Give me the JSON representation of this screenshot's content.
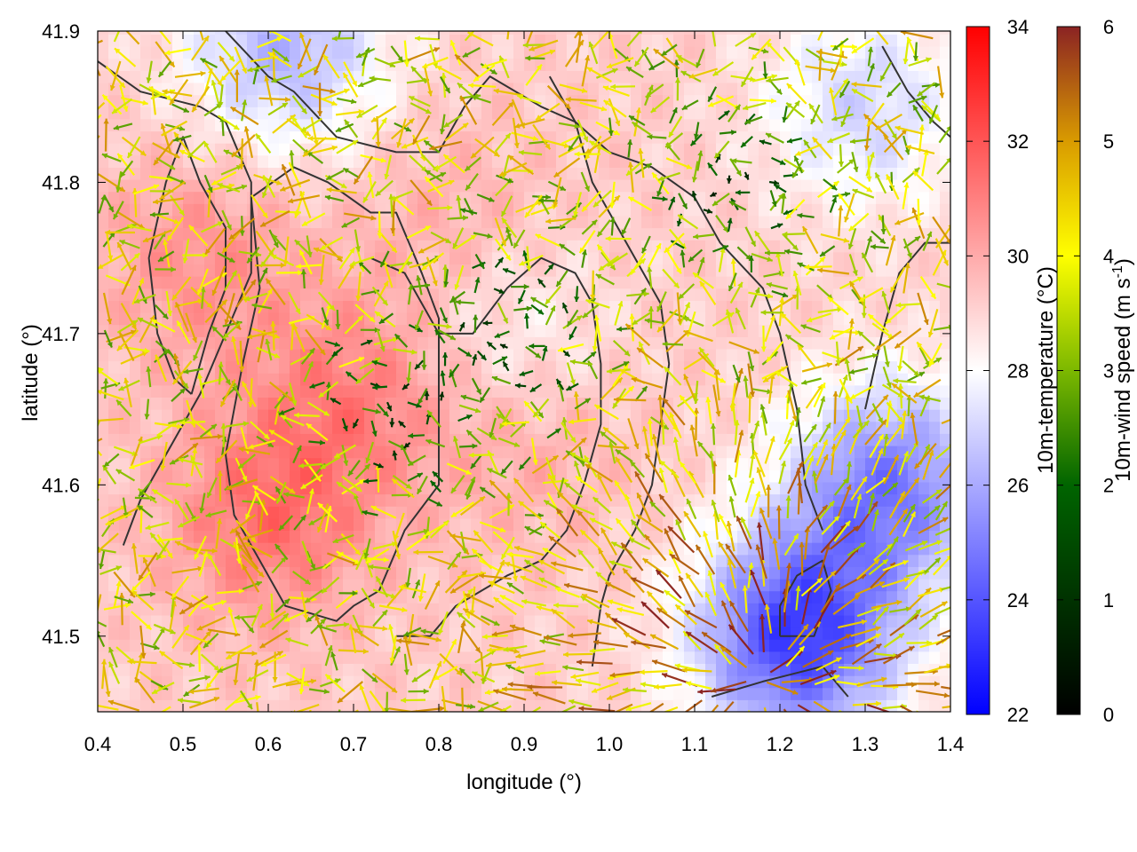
{
  "chart_data": {
    "type": "heatmap",
    "xlabel": "longitude (°)",
    "ylabel": "latitude (°)",
    "xlim": [
      0.4,
      1.4
    ],
    "ylim": [
      41.45,
      41.9
    ],
    "xticks": [
      0.4,
      0.5,
      0.6,
      0.7,
      0.8,
      0.9,
      1.0,
      1.1,
      1.2,
      1.3,
      1.4
    ],
    "xtick_labels": [
      "0.4",
      "0.5",
      "0.6",
      "0.7",
      "0.8",
      "0.9",
      "1.0",
      "1.1",
      "1.2",
      "1.3",
      "1.4"
    ],
    "yticks": [
      41.5,
      41.6,
      41.7,
      41.8,
      41.9
    ],
    "ytick_labels": [
      "41.5",
      "41.6",
      "41.7",
      "41.8",
      "41.9"
    ],
    "grid": false,
    "layers": [
      {
        "kind": "color-field",
        "name": "10m-temperature (°C)",
        "range": [
          22,
          34
        ],
        "ticks": [
          22,
          24,
          26,
          28,
          30,
          32,
          34
        ],
        "tick_labels": [
          "22",
          "24",
          "26",
          "28",
          "30",
          "32",
          "34"
        ],
        "colormap": [
          "#0000ff",
          "#ffffff",
          "#ff0000"
        ],
        "colormap_positions": [
          0,
          0.5,
          1
        ],
        "warm_centers": [
          {
            "lon": 0.6,
            "lat": 41.58,
            "value": 31.3
          },
          {
            "lon": 0.52,
            "lat": 41.75,
            "value": 30.6
          },
          {
            "lon": 0.7,
            "lat": 41.66,
            "value": 30.9
          },
          {
            "lon": 0.9,
            "lat": 41.63,
            "value": 30.1
          },
          {
            "lon": 0.82,
            "lat": 41.77,
            "value": 30.0
          }
        ],
        "cool_centers": [
          {
            "lon": 1.22,
            "lat": 41.5,
            "value": 23.5
          },
          {
            "lon": 1.33,
            "lat": 41.6,
            "value": 25.0
          },
          {
            "lon": 0.62,
            "lat": 41.89,
            "value": 26.2
          },
          {
            "lon": 1.3,
            "lat": 41.85,
            "value": 27.0
          },
          {
            "lon": 0.88,
            "lat": 41.7,
            "value": 28.0
          }
        ],
        "background_value": 29.2
      },
      {
        "kind": "vector-field",
        "name": "10m-wind speed (m s-1)",
        "range": [
          0,
          6
        ],
        "ticks": [
          0,
          1,
          2,
          3,
          4,
          5,
          6
        ],
        "tick_labels": [
          "0",
          "1",
          "2",
          "3",
          "4",
          "5",
          "6"
        ],
        "colormap": [
          "#000000",
          "#006400",
          "#7cb800",
          "#ffff00",
          "#d99b00",
          "#8b2323"
        ],
        "colormap_positions": [
          0,
          0.333,
          0.5,
          0.667,
          0.833,
          1
        ],
        "calm_centers": [
          {
            "lon": 0.9,
            "lat": 41.7
          },
          {
            "lon": 1.15,
            "lat": 41.8
          },
          {
            "lon": 0.75,
            "lat": 41.65
          }
        ],
        "divergence_center": {
          "lon": 1.18,
          "lat": 41.47
        },
        "grid_step_lon": 0.02,
        "grid_step_lat": 0.0125
      },
      {
        "kind": "contour",
        "name": "topography",
        "color": "#333333",
        "lines": [
          [
            [
              0.55,
              41.9
            ],
            [
              0.6,
              41.87
            ],
            [
              0.63,
              41.86
            ],
            [
              0.68,
              41.83
            ],
            [
              0.75,
              41.82
            ],
            [
              0.8,
              41.82
            ],
            [
              0.83,
              41.85
            ],
            [
              0.86,
              41.87
            ],
            [
              0.92,
              41.85
            ],
            [
              0.96,
              41.84
            ],
            [
              1.0,
              41.82
            ],
            [
              1.05,
              41.81
            ],
            [
              1.1,
              41.79
            ],
            [
              1.13,
              41.76
            ],
            [
              1.18,
              41.73
            ],
            [
              1.2,
              41.7
            ],
            [
              1.22,
              41.65
            ],
            [
              1.23,
              41.6
            ],
            [
              1.25,
              41.57
            ]
          ],
          [
            [
              0.58,
              41.79
            ],
            [
              0.63,
              41.81
            ],
            [
              0.67,
              41.8
            ],
            [
              0.72,
              41.78
            ],
            [
              0.75,
              41.78
            ],
            [
              0.78,
              41.74
            ],
            [
              0.8,
              41.71
            ],
            [
              0.8,
              41.66
            ],
            [
              0.8,
              41.6
            ],
            [
              0.76,
              41.57
            ],
            [
              0.73,
              41.53
            ],
            [
              0.7,
              41.52
            ],
            [
              0.68,
              41.51
            ],
            [
              0.62,
              41.52
            ],
            [
              0.58,
              41.56
            ],
            [
              0.56,
              41.58
            ],
            [
              0.55,
              41.62
            ],
            [
              0.57,
              41.68
            ],
            [
              0.59,
              41.73
            ],
            [
              0.58,
              41.79
            ]
          ],
          [
            [
              0.4,
              41.88
            ],
            [
              0.45,
              41.86
            ],
            [
              0.52,
              41.85
            ],
            [
              0.55,
              41.84
            ],
            [
              0.58,
              41.8
            ],
            [
              0.58,
              41.74
            ],
            [
              0.55,
              41.7
            ],
            [
              0.52,
              41.66
            ],
            [
              0.49,
              41.63
            ],
            [
              0.45,
              41.59
            ],
            [
              0.43,
              41.56
            ]
          ],
          [
            [
              0.51,
              41.66
            ],
            [
              0.53,
              41.7
            ],
            [
              0.55,
              41.73
            ],
            [
              0.55,
              41.77
            ],
            [
              0.52,
              41.8
            ],
            [
              0.5,
              41.83
            ],
            [
              0.48,
              41.8
            ],
            [
              0.46,
              41.75
            ],
            [
              0.47,
              41.7
            ],
            [
              0.49,
              41.67
            ],
            [
              0.51,
              41.66
            ]
          ],
          [
            [
              0.93,
              41.87
            ],
            [
              0.96,
              41.84
            ],
            [
              0.98,
              41.8
            ],
            [
              1.01,
              41.77
            ],
            [
              1.04,
              41.74
            ],
            [
              1.06,
              41.72
            ],
            [
              1.07,
              41.68
            ],
            [
              1.06,
              41.64
            ],
            [
              1.05,
              41.6
            ],
            [
              1.03,
              41.57
            ],
            [
              1.0,
              41.54
            ],
            [
              0.99,
              41.52
            ],
            [
              0.98,
              41.48
            ]
          ],
          [
            [
              0.72,
              41.75
            ],
            [
              0.76,
              41.74
            ],
            [
              0.8,
              41.7
            ],
            [
              0.84,
              41.7
            ],
            [
              0.88,
              41.73
            ],
            [
              0.92,
              41.75
            ],
            [
              0.96,
              41.74
            ],
            [
              0.98,
              41.72
            ],
            [
              0.99,
              41.68
            ],
            [
              0.99,
              41.64
            ],
            [
              0.97,
              41.6
            ],
            [
              0.95,
              41.57
            ],
            [
              0.92,
              41.55
            ],
            [
              0.88,
              41.54
            ],
            [
              0.85,
              41.53
            ],
            [
              0.82,
              41.52
            ],
            [
              0.79,
              41.5
            ],
            [
              0.75,
              41.5
            ]
          ],
          [
            [
              1.12,
              41.46
            ],
            [
              1.18,
              41.47
            ],
            [
              1.25,
              41.48
            ],
            [
              1.28,
              41.46
            ]
          ],
          [
            [
              1.2,
              41.5
            ],
            [
              1.24,
              41.5
            ],
            [
              1.26,
              41.53
            ],
            [
              1.25,
              41.55
            ],
            [
              1.22,
              41.54
            ],
            [
              1.2,
              41.52
            ],
            [
              1.2,
              41.5
            ]
          ],
          [
            [
              1.32,
              41.89
            ],
            [
              1.35,
              41.86
            ],
            [
              1.38,
              41.84
            ],
            [
              1.4,
              41.83
            ]
          ],
          [
            [
              1.3,
              41.65
            ],
            [
              1.32,
              41.7
            ],
            [
              1.34,
              41.74
            ],
            [
              1.37,
              41.76
            ],
            [
              1.4,
              41.76
            ]
          ]
        ]
      }
    ],
    "colorbar_labels": [
      "10m-temperature (°C)",
      "10m-wind speed (m s",
      "-1",
      ")"
    ]
  }
}
